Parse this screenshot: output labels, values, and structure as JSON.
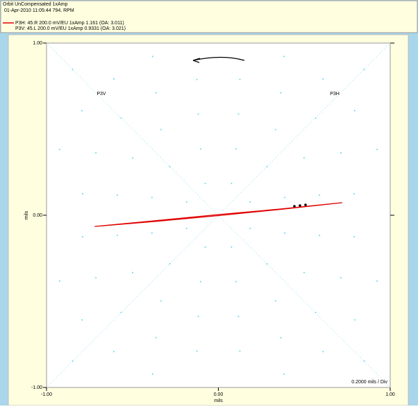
{
  "header": {
    "title": "Orbit  UnCompensated  1xAmp",
    "subtitle": "01-Apr-2010 11:05:44   794. RPM",
    "lines": [
      "P3H:  45.R   200.0 mV/EU       1xAmp  1.161    (OA: 3.011)",
      "P3V:  45.L   200.0 mV/EU       1xAmp  0.9331  (OA: 3.021)"
    ]
  },
  "chart_data": {
    "type": "line",
    "x": [
      -0.72,
      -0.36,
      0,
      0.36,
      0.72,
      0.36,
      0,
      -0.36,
      -0.72
    ],
    "series": [
      {
        "name": "P3H",
        "color": "#e00000",
        "values": [
          -0.065,
          -0.035,
          -0.002,
          0.034,
          0.073,
          0.036,
          0.004,
          -0.031,
          -0.065
        ]
      }
    ],
    "xlim": [
      -1,
      1
    ],
    "ylim": [
      -1,
      1
    ],
    "xticks": [
      {
        "value": -1,
        "label": "-1.00"
      },
      {
        "value": 0,
        "label": "0.00"
      },
      {
        "value": 1,
        "label": "1.00"
      }
    ],
    "yticks": [
      {
        "value": -1,
        "label": "-1.00"
      },
      {
        "value": 0,
        "label": "0.00"
      },
      {
        "value": 1,
        "label": "1.00"
      }
    ],
    "xlabel": "mils",
    "ylabel": "mils",
    "probe_labels": [
      "P3V",
      "P3H"
    ],
    "division": {
      "value": 0.2,
      "label": "0.2000 mils / Div"
    },
    "grid": true
  }
}
